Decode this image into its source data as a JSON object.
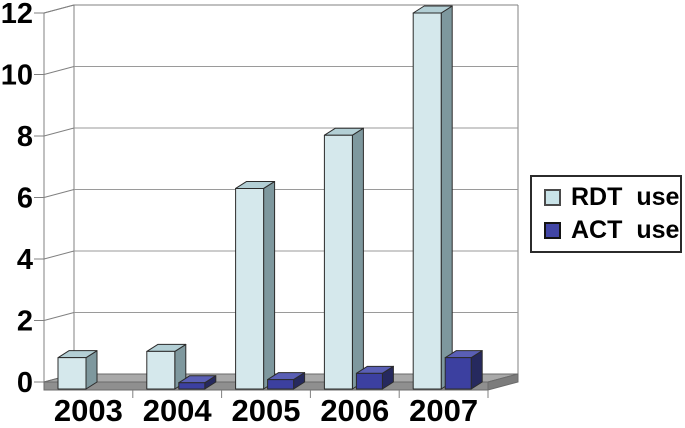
{
  "chart_data": {
    "type": "bar",
    "style": "3d-column",
    "categories": [
      "2003",
      "2004",
      "2005",
      "2006",
      "2007"
    ],
    "series": [
      {
        "name": "RDT use",
        "values": [
          1.0,
          1.2,
          6.4,
          8.1,
          12.0
        ],
        "color_front": "#d5e8ec",
        "color_top": "#b3cfd5",
        "color_side": "#7e989e",
        "swatch": "#c9e3e8"
      },
      {
        "name": "ACT use",
        "values": [
          0,
          0.2,
          0.3,
          0.5,
          1.0
        ],
        "color_front": "#3c40a0",
        "color_top": "#5a5fb5",
        "color_side": "#26295e",
        "swatch": "#4145a5"
      }
    ],
    "ylim": [
      0,
      12
    ],
    "yticks": [
      0,
      2,
      4,
      6,
      8,
      10,
      12
    ],
    "grid": true,
    "legend_position": "right"
  },
  "colors": {
    "background": "#ffffff",
    "gridline": "#9a9a9a",
    "axis": "#808080",
    "floor_top": "#a9a9a9",
    "floor_front": "#8f8f8f",
    "floor_side": "#7c7c7c",
    "bar_outline": "#2b2b2b",
    "text": "#000000",
    "legend_border": "#2b2b2b"
  }
}
